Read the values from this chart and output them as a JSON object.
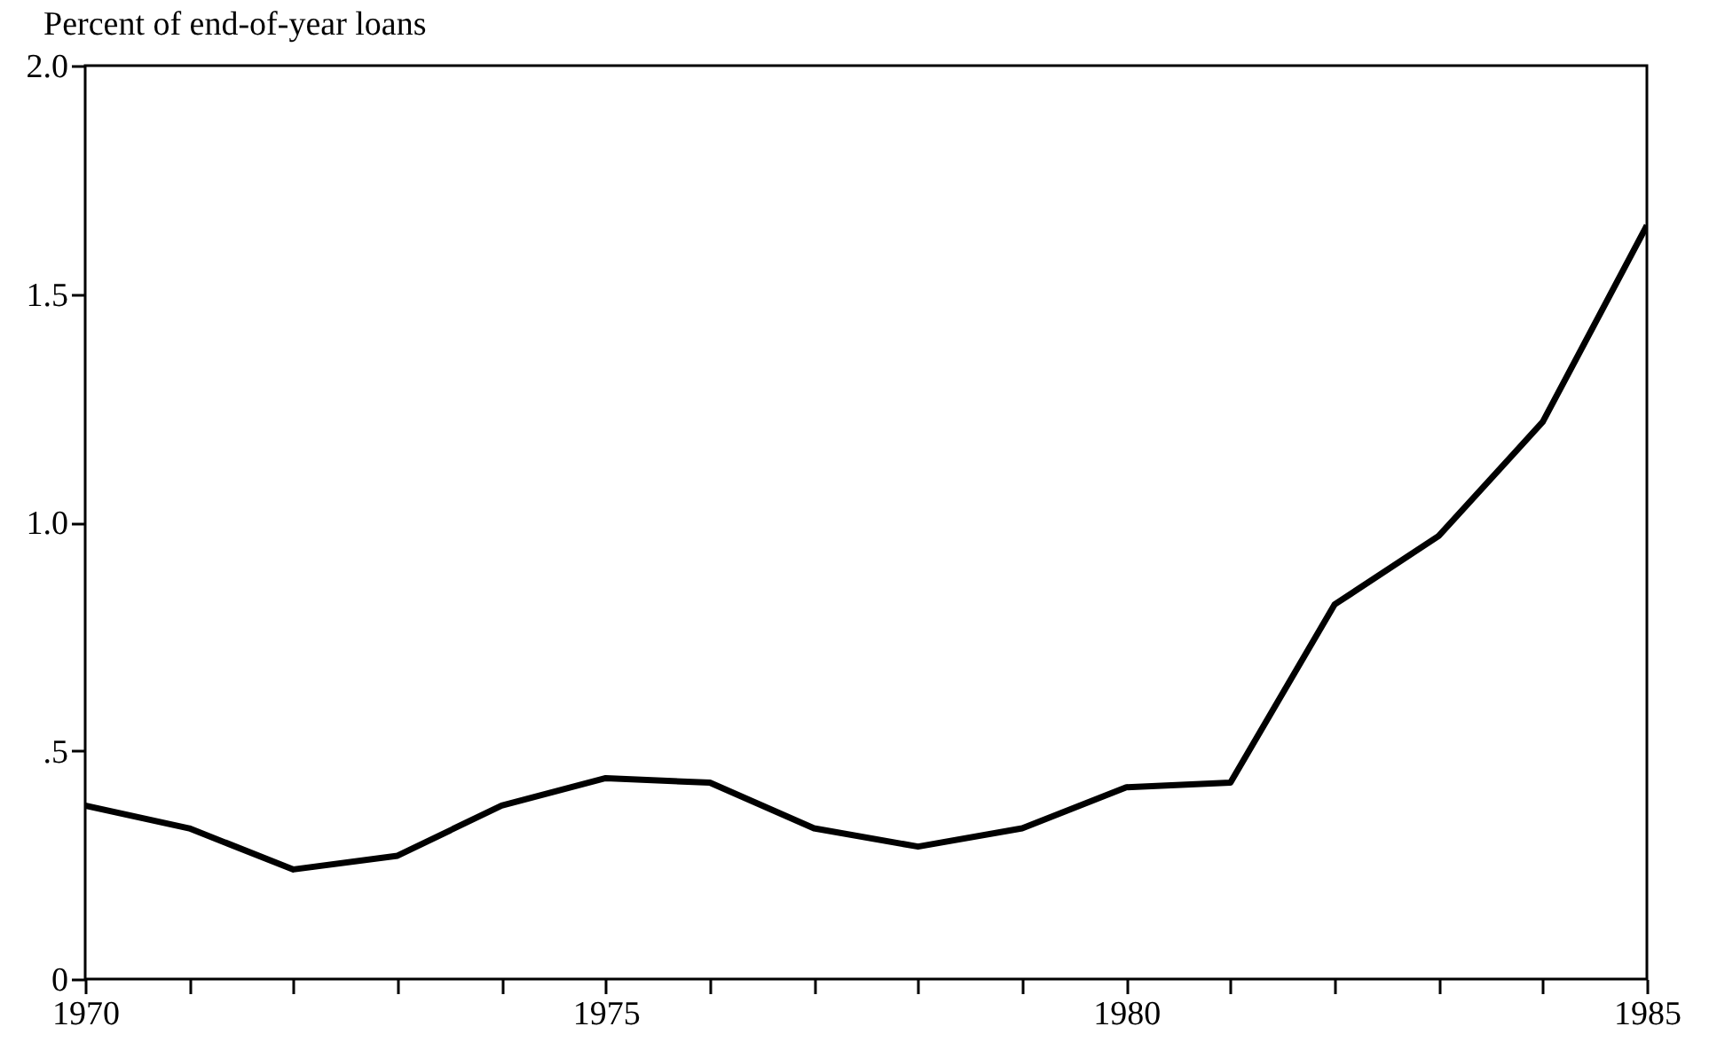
{
  "chart_data": {
    "type": "line",
    "ylabel": "Percent of end-of-year loans",
    "x": [
      1970,
      1971,
      1972,
      1973,
      1974,
      1975,
      1976,
      1977,
      1978,
      1979,
      1980,
      1981,
      1982,
      1983,
      1984,
      1985
    ],
    "series": [
      {
        "color": "#000000",
        "values": [
          0.38,
          0.33,
          0.24,
          0.27,
          0.38,
          0.44,
          0.43,
          0.33,
          0.29,
          0.33,
          0.42,
          0.43,
          0.82,
          0.97,
          1.22,
          1.65
        ]
      }
    ],
    "xlim": [
      1970,
      1985
    ],
    "xticks": [
      1970,
      {
        "value": 1971,
        "label": null
      },
      {
        "value": 1972,
        "label": null
      },
      {
        "value": 1973,
        "label": null
      },
      {
        "value": 1974,
        "label": null
      },
      1975,
      {
        "value": 1976,
        "label": null
      },
      {
        "value": 1977,
        "label": null
      },
      {
        "value": 1978,
        "label": null
      },
      {
        "value": 1979,
        "label": null
      },
      1980,
      {
        "value": 1981,
        "label": null
      },
      {
        "value": 1982,
        "label": null
      },
      {
        "value": 1983,
        "label": null
      },
      {
        "value": 1984,
        "label": null
      },
      1985
    ],
    "ylim": [
      0,
      2
    ],
    "yticks": [
      0,
      {
        "value": 0.5,
        "label": ".5"
      },
      {
        "value": 1,
        "label": "1.0"
      },
      {
        "value": 1.5,
        "label": "1.5"
      },
      {
        "value": 2,
        "label": "2.0"
      }
    ],
    "grid": false,
    "legend": false,
    "marker": "none",
    "line_style": "solid"
  }
}
